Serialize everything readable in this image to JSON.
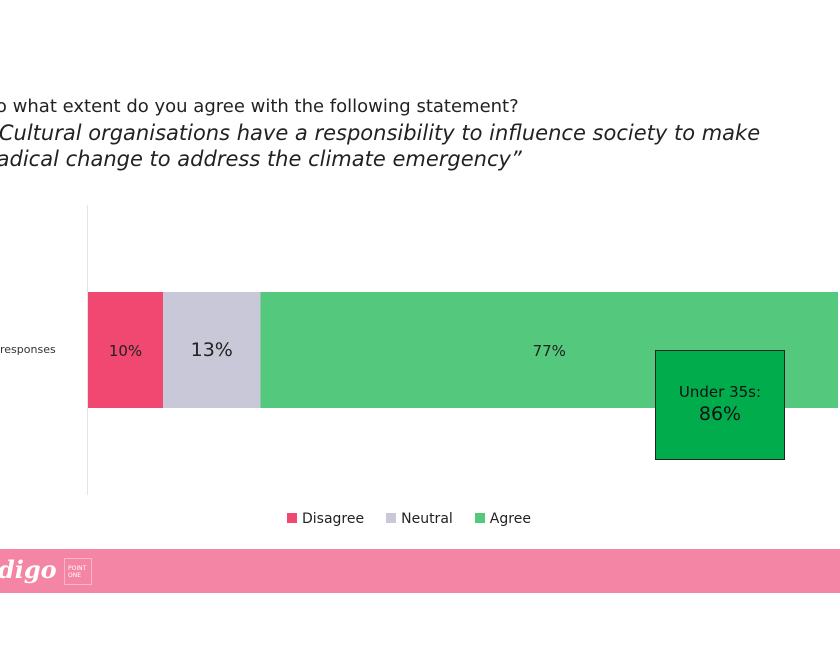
{
  "question": "To what extent do you agree with the following statement?",
  "statement_line1": "“Cultural organisations have a responsibility to influence society to make",
  "statement_line2": "radical change to address the climate emergency”",
  "chart_data": {
    "type": "bar",
    "orientation": "horizontal",
    "stacked": true,
    "categories": [
      "All responses"
    ],
    "series": [
      {
        "name": "Disagree",
        "values": [
          10
        ],
        "label": "10%",
        "color": "#f04870"
      },
      {
        "name": "Neutral",
        "values": [
          13
        ],
        "label": "13%",
        "color": "#c8c8d8"
      },
      {
        "name": "Agree",
        "values": [
          77
        ],
        "label": "77%",
        "color": "#54c87c"
      }
    ],
    "xlim": [
      0,
      100
    ],
    "legend": "bottom",
    "annotation": {
      "label": "Under 35s:",
      "value": "86%",
      "color": "#00ac4c"
    }
  },
  "category_label": "responses",
  "footer": {
    "logo": "digo",
    "badge": "POINT ONE",
    "color": "#f585a4"
  }
}
